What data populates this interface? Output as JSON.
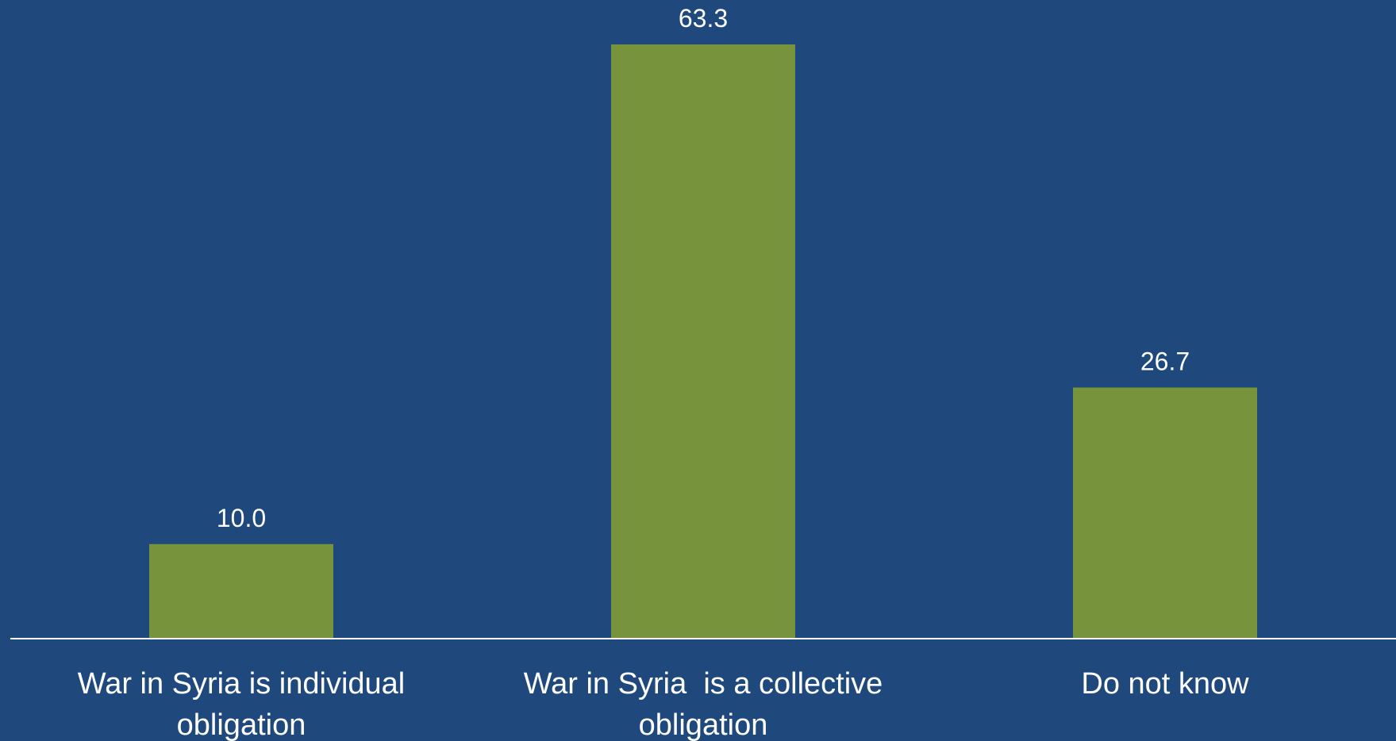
{
  "colors": {
    "background": "#1f497d",
    "bar": "#77933c",
    "axis": "#ffffff",
    "text": "#ffffff"
  },
  "chart_data": {
    "type": "bar",
    "categories": [
      [
        "War in Syria is individual",
        "obligation"
      ],
      [
        "War in Syria  is a collective",
        "obligation"
      ],
      [
        "Do not know"
      ]
    ],
    "values": [
      10.0,
      63.3,
      26.7
    ],
    "data_labels": [
      "10.0",
      "63.3",
      "26.7"
    ],
    "title": "",
    "xlabel": "",
    "ylabel": "",
    "ylim": [
      0,
      63.3
    ],
    "grid": false,
    "legend": "none"
  }
}
